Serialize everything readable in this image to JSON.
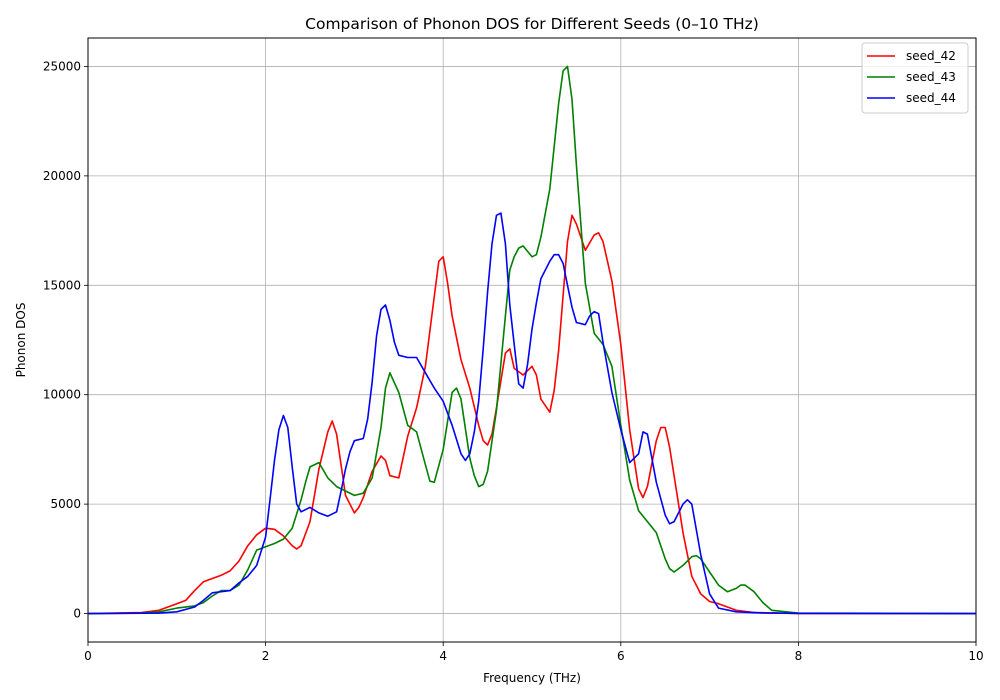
{
  "chart_data": {
    "type": "line",
    "title": "Comparison of Phonon DOS for Different Seeds (0–10 THz)",
    "xlabel": "Frequency (THz)",
    "ylabel": "Phonon DOS",
    "xlim": [
      0,
      10
    ],
    "ylim": [
      -1300,
      26300
    ],
    "xticks": [
      0,
      2,
      4,
      6,
      8,
      10
    ],
    "xtick_labels": [
      "0",
      "2",
      "4",
      "6",
      "8",
      "10"
    ],
    "yticks": [
      0,
      5000,
      10000,
      15000,
      20000,
      25000
    ],
    "ytick_labels": [
      "0",
      "5000",
      "10000",
      "15000",
      "20000",
      "25000"
    ],
    "grid": true,
    "legend_position": "top-right",
    "series": [
      {
        "name": "seed_42",
        "color": "#ff0000",
        "x": [
          0,
          0.6,
          0.8,
          1.0,
          1.1,
          1.2,
          1.3,
          1.4,
          1.5,
          1.6,
          1.7,
          1.8,
          1.9,
          2.0,
          2.1,
          2.2,
          2.3,
          2.35,
          2.4,
          2.5,
          2.6,
          2.7,
          2.75,
          2.8,
          2.9,
          3.0,
          3.05,
          3.1,
          3.2,
          3.3,
          3.35,
          3.4,
          3.5,
          3.6,
          3.7,
          3.8,
          3.9,
          3.95,
          4.0,
          4.05,
          4.1,
          4.2,
          4.3,
          4.4,
          4.45,
          4.5,
          4.55,
          4.6,
          4.7,
          4.75,
          4.8,
          4.9,
          5.0,
          5.05,
          5.1,
          5.2,
          5.25,
          5.3,
          5.4,
          5.45,
          5.5,
          5.6,
          5.7,
          5.75,
          5.8,
          5.9,
          6.0,
          6.1,
          6.2,
          6.25,
          6.3,
          6.4,
          6.45,
          6.5,
          6.55,
          6.6,
          6.7,
          6.8,
          6.9,
          7.0,
          7.1,
          7.2,
          7.3,
          7.5,
          8.0,
          10.0
        ],
        "values": [
          0,
          50,
          150,
          450,
          600,
          1050,
          1450,
          1600,
          1750,
          1950,
          2400,
          3100,
          3600,
          3900,
          3850,
          3550,
          3100,
          2950,
          3100,
          4200,
          6600,
          8300,
          8800,
          8200,
          5400,
          4600,
          4850,
          5300,
          6500,
          7200,
          7000,
          6300,
          6200,
          8100,
          9400,
          11300,
          14500,
          16100,
          16300,
          15100,
          13600,
          11600,
          10300,
          8600,
          7900,
          7700,
          8200,
          9400,
          11900,
          12100,
          11200,
          10900,
          11300,
          10900,
          9800,
          9200,
          10200,
          12000,
          17000,
          18200,
          17800,
          16600,
          17300,
          17400,
          17000,
          15200,
          12300,
          8400,
          5700,
          5300,
          5800,
          7900,
          8500,
          8500,
          7600,
          6300,
          3700,
          1700,
          900,
          550,
          450,
          300,
          150,
          50,
          0,
          0
        ]
      },
      {
        "name": "seed_43",
        "color": "#008000",
        "x": [
          0,
          0.6,
          0.8,
          1.0,
          1.2,
          1.3,
          1.4,
          1.5,
          1.6,
          1.7,
          1.8,
          1.9,
          2.0,
          2.1,
          2.2,
          2.3,
          2.4,
          2.45,
          2.5,
          2.6,
          2.7,
          2.8,
          2.9,
          3.0,
          3.1,
          3.2,
          3.3,
          3.35,
          3.4,
          3.5,
          3.6,
          3.7,
          3.8,
          3.85,
          3.9,
          4.0,
          4.1,
          4.15,
          4.2,
          4.3,
          4.35,
          4.4,
          4.45,
          4.5,
          4.6,
          4.7,
          4.75,
          4.8,
          4.85,
          4.9,
          5.0,
          5.05,
          5.1,
          5.2,
          5.3,
          5.35,
          5.4,
          5.45,
          5.5,
          5.6,
          5.7,
          5.8,
          5.9,
          6.0,
          6.1,
          6.2,
          6.3,
          6.4,
          6.5,
          6.55,
          6.6,
          6.7,
          6.8,
          6.85,
          6.9,
          7.0,
          7.1,
          7.2,
          7.3,
          7.35,
          7.4,
          7.5,
          7.6,
          7.7,
          8.0,
          10.0
        ],
        "values": [
          0,
          20,
          80,
          250,
          350,
          500,
          800,
          1050,
          1050,
          1300,
          2000,
          2900,
          3050,
          3200,
          3400,
          3900,
          5200,
          6000,
          6700,
          6900,
          6200,
          5800,
          5600,
          5400,
          5500,
          6200,
          8500,
          10300,
          11000,
          10100,
          8600,
          8300,
          6800,
          6050,
          6000,
          7500,
          10100,
          10300,
          9800,
          7100,
          6300,
          5800,
          5900,
          6500,
          9300,
          13600,
          15700,
          16300,
          16700,
          16800,
          16300,
          16400,
          17200,
          19400,
          23300,
          24800,
          25000,
          23500,
          20500,
          15100,
          12800,
          12300,
          11300,
          8600,
          6100,
          4700,
          4200,
          3700,
          2500,
          2050,
          1900,
          2200,
          2600,
          2650,
          2500,
          1900,
          1300,
          1000,
          1150,
          1300,
          1300,
          1000,
          500,
          150,
          20,
          0
        ]
      },
      {
        "name": "seed_44",
        "color": "#0000ff",
        "x": [
          0,
          0.8,
          1.0,
          1.2,
          1.3,
          1.4,
          1.5,
          1.6,
          1.7,
          1.8,
          1.9,
          2.0,
          2.05,
          2.1,
          2.15,
          2.2,
          2.25,
          2.3,
          2.35,
          2.4,
          2.5,
          2.6,
          2.7,
          2.8,
          2.85,
          2.9,
          2.95,
          3.0,
          3.1,
          3.15,
          3.2,
          3.25,
          3.3,
          3.35,
          3.4,
          3.45,
          3.5,
          3.6,
          3.7,
          3.8,
          3.9,
          4.0,
          4.1,
          4.2,
          4.25,
          4.3,
          4.35,
          4.4,
          4.45,
          4.5,
          4.55,
          4.6,
          4.65,
          4.7,
          4.75,
          4.8,
          4.85,
          4.9,
          4.95,
          5.0,
          5.05,
          5.1,
          5.2,
          5.25,
          5.3,
          5.35,
          5.4,
          5.45,
          5.5,
          5.6,
          5.65,
          5.7,
          5.75,
          5.8,
          5.9,
          6.0,
          6.1,
          6.2,
          6.25,
          6.3,
          6.4,
          6.5,
          6.55,
          6.6,
          6.7,
          6.75,
          6.8,
          6.9,
          7.0,
          7.1,
          7.3,
          7.6,
          8.0,
          10.0
        ],
        "values": [
          0,
          20,
          80,
          300,
          600,
          950,
          1000,
          1050,
          1400,
          1700,
          2200,
          3500,
          5200,
          7000,
          8400,
          9050,
          8500,
          6700,
          5000,
          4650,
          4850,
          4600,
          4450,
          4650,
          5600,
          6600,
          7400,
          7900,
          8000,
          8900,
          10600,
          12700,
          13900,
          14100,
          13400,
          12400,
          11800,
          11700,
          11700,
          11000,
          10300,
          9700,
          8600,
          7300,
          7000,
          7300,
          8300,
          9700,
          12100,
          14700,
          16900,
          18200,
          18300,
          16900,
          14100,
          12300,
          10500,
          10300,
          11400,
          13000,
          14200,
          15300,
          16100,
          16400,
          16400,
          16000,
          15000,
          14000,
          13300,
          13200,
          13600,
          13800,
          13700,
          12400,
          10100,
          8400,
          6900,
          7300,
          8300,
          8200,
          6000,
          4500,
          4100,
          4200,
          5000,
          5200,
          5000,
          2700,
          900,
          250,
          80,
          30,
          10,
          0
        ]
      }
    ]
  }
}
